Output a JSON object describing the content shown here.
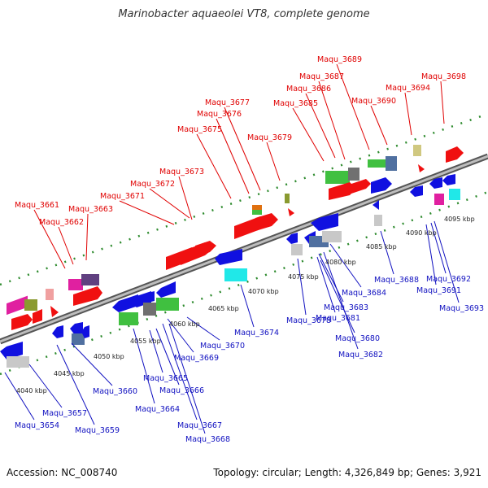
{
  "title": "Marinobacter aquaeolei VT8, complete genome",
  "footer": {
    "accession": "Accession: NC_008740",
    "stats": "Topology: circular; Length: 4,326,849 bp; Genes: 3,921"
  },
  "colors": {
    "top_label": "#e00000",
    "bottom_label": "#1010c0",
    "backbone": "#888888",
    "dotted_guide": "#2e8b2e"
  },
  "ticks": [
    "4040 kbp",
    "4045 kbp",
    "4050 kbp",
    "4055 kbp",
    "4060 kbp",
    "4065 kbp",
    "4070 kbp",
    "4075 kbp",
    "4080 kbp",
    "4085 kbp",
    "4090 kbp",
    "4095 kbp"
  ],
  "top_labels": [
    "Maqu_3661",
    "Maqu_3662",
    "Maqu_3663",
    "Maqu_3671",
    "Maqu_3672",
    "Maqu_3673",
    "Maqu_3675",
    "Maqu_3676",
    "Maqu_3677",
    "Maqu_3679",
    "Maqu_3685",
    "Maqu_3686",
    "Maqu_3687",
    "Maqu_3689",
    "Maqu_3690",
    "Maqu_3694",
    "Maqu_3698"
  ],
  "bottom_labels": [
    "Maqu_3654",
    "Maqu_3657",
    "Maqu_3659",
    "Maqu_3660",
    "Maqu_3664",
    "Maqu_3665",
    "Maqu_3666",
    "Maqu_3667",
    "Maqu_3668",
    "Maqu_3669",
    "Maqu_3670",
    "Maqu_3674",
    "Maqu_3678",
    "Maqu_3680",
    "Maqu_3681",
    "Maqu_3682",
    "Maqu_3683",
    "Maqu_3684",
    "Maqu_3688",
    "Maqu_3691",
    "Maqu_3692",
    "Maqu_3693"
  ]
}
